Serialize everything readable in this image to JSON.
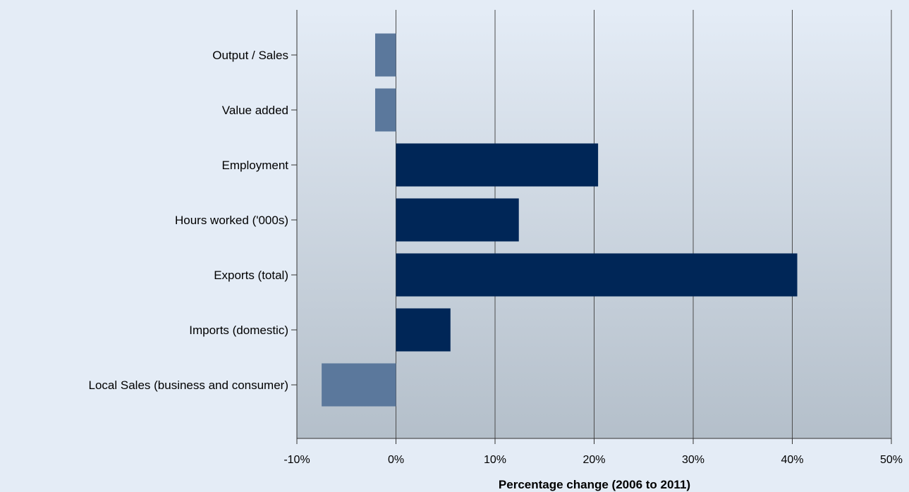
{
  "chart_data": {
    "type": "bar",
    "orientation": "horizontal",
    "title": "",
    "xlabel": "Percentage change (2006 to 2011)",
    "ylabel": "",
    "xlim": [
      -10,
      50
    ],
    "x_ticks": [
      -10,
      0,
      10,
      20,
      30,
      40,
      50
    ],
    "x_tick_labels": [
      "-10%",
      "0%",
      "10%",
      "20%",
      "30%",
      "40%",
      "50%"
    ],
    "grid": true,
    "categories": [
      "Output / Sales",
      "Value added",
      "Employment",
      "Hours worked ('000s)",
      "Exports (total)",
      "Imports (domestic)",
      "Local Sales (business and consumer)"
    ],
    "values": [
      -2.1,
      -2.1,
      20.4,
      12.4,
      40.5,
      5.5,
      -7.5
    ],
    "colors": {
      "positive": "#002657",
      "negative": "#5b789c",
      "gridline": "#4d4d4d",
      "plot_bg_top": "#e4ecf6",
      "plot_bg_bottom": "#b4bfca",
      "text": "#000000"
    }
  }
}
